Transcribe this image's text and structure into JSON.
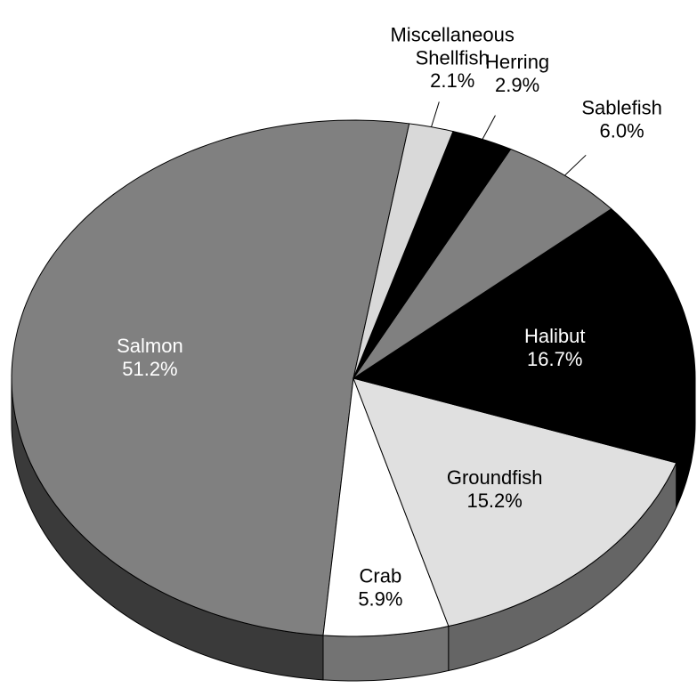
{
  "chart_data": {
    "type": "pie",
    "categories": [
      "Salmon",
      "Crab",
      "Groundfish",
      "Halibut",
      "Sablefish",
      "Herring",
      "Miscellaneous Shellfish"
    ],
    "values": [
      51.2,
      5.9,
      15.2,
      16.7,
      6.0,
      2.9,
      2.1
    ],
    "value_labels": [
      "51.2%",
      "5.9%",
      "15.2%",
      "16.7%",
      "6.0%",
      "2.9%",
      "2.1%"
    ],
    "colors": [
      "#808080",
      "#ffffff",
      "#e0e0e0",
      "#000000",
      "#808080",
      "#000000",
      "#d9d9d9"
    ],
    "three_d": true
  }
}
